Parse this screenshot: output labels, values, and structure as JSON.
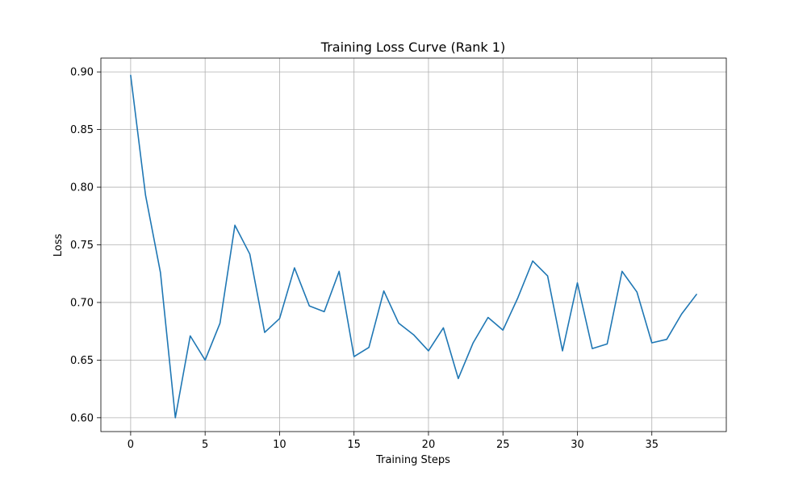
{
  "chart_data": {
    "type": "line",
    "title": "Training Loss Curve (Rank 1)",
    "xlabel": "Training Steps",
    "ylabel": "Loss",
    "xlim": [
      -2,
      40
    ],
    "ylim": [
      0.588,
      0.912
    ],
    "xticks": [
      0,
      5,
      10,
      15,
      20,
      25,
      30,
      35
    ],
    "yticks": [
      0.6,
      0.65,
      0.7,
      0.75,
      0.8,
      0.85,
      0.9
    ],
    "ytick_labels": [
      "0.60",
      "0.65",
      "0.70",
      "0.75",
      "0.80",
      "0.85",
      "0.90"
    ],
    "xtick_labels": [
      "0",
      "5",
      "10",
      "15",
      "20",
      "25",
      "30",
      "35"
    ],
    "grid": true,
    "series": [
      {
        "color": "#1f77b4",
        "x": [
          0,
          1,
          2,
          3,
          4,
          5,
          6,
          7,
          8,
          9,
          10,
          11,
          12,
          13,
          14,
          15,
          16,
          17,
          18,
          19,
          20,
          21,
          22,
          23,
          24,
          25,
          26,
          27,
          28,
          29,
          30,
          31,
          32,
          33,
          34,
          35,
          36,
          37,
          38
        ],
        "y": [
          0.897,
          0.793,
          0.726,
          0.6,
          0.671,
          0.65,
          0.682,
          0.767,
          0.742,
          0.674,
          0.686,
          0.73,
          0.697,
          0.692,
          0.727,
          0.653,
          0.661,
          0.71,
          0.682,
          0.672,
          0.658,
          0.678,
          0.634,
          0.665,
          0.687,
          0.676,
          0.704,
          0.736,
          0.723,
          0.658,
          0.717,
          0.66,
          0.664,
          0.727,
          0.709,
          0.665,
          0.668,
          0.69,
          0.707
        ]
      }
    ]
  }
}
